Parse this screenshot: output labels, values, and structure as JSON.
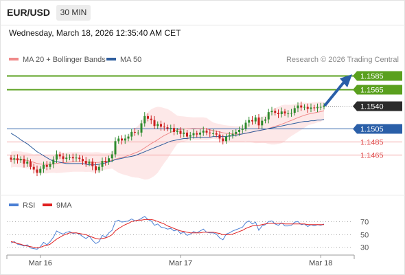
{
  "header": {
    "symbol": "EUR/USD",
    "timeframe": "30 MIN",
    "datetime": "Wednesday, March 18, 2026 12:35:40 AM CET"
  },
  "legend": {
    "ma20": "MA 20 + Bollinger Bands",
    "ma50": "MA 50",
    "ma20_color": "#f08a8a",
    "ma50_color": "#2f5e9e",
    "credit": "Research © 2026 Trading Central"
  },
  "rsi_legend": {
    "rsi": "RSI",
    "ma9": "9MA",
    "rsi_color": "#4a7fd4",
    "ma9_color": "#e02020"
  },
  "colors": {
    "green": "#5aa01e",
    "blue": "#2a5fa8",
    "red_level": "#e05050",
    "up_candle": "#2e8b2e",
    "down_candle": "#cc2020",
    "band_fill": "#fde2e2"
  },
  "chart_data": [
    {
      "type": "candlestick",
      "x_ticks": [
        "Mar 16",
        "Mar 17",
        "Mar 18"
      ],
      "levels": [
        {
          "label": "1.1585",
          "value": 1.1585,
          "style": "green-solid",
          "tag": "green"
        },
        {
          "label": "1.1565",
          "value": 1.1565,
          "style": "green-solid",
          "tag": "green"
        },
        {
          "label": "1.1540",
          "value": 1.154,
          "style": "dotted",
          "tag": "dark"
        },
        {
          "label": "1.1505",
          "value": 1.1505,
          "style": "blue-solid",
          "tag": "blue"
        },
        {
          "label": "1.1485",
          "value": 1.1485,
          "style": "red-solid",
          "tag": "red-text"
        },
        {
          "label": "1.1465",
          "value": 1.1465,
          "style": "red-solid",
          "tag": "red-text"
        }
      ],
      "ylim": [
        1.1405,
        1.16
      ],
      "closes": [
        1.1458,
        1.146,
        1.1457,
        1.1459,
        1.1452,
        1.1455,
        1.1447,
        1.1443,
        1.1438,
        1.1444,
        1.145,
        1.1447,
        1.1451,
        1.1458,
        1.1466,
        1.1463,
        1.1459,
        1.1461,
        1.1462,
        1.146,
        1.1461,
        1.1459,
        1.1456,
        1.1452,
        1.1455,
        1.1448,
        1.1442,
        1.1447,
        1.1456,
        1.1454,
        1.146,
        1.1466,
        1.1486,
        1.149,
        1.1487,
        1.149,
        1.1493,
        1.15,
        1.1499,
        1.1499,
        1.1513,
        1.1524,
        1.152,
        1.1518,
        1.1509,
        1.1512,
        1.1508,
        1.1507,
        1.1505,
        1.1506,
        1.15,
        1.1502,
        1.1497,
        1.1499,
        1.1493,
        1.1495,
        1.1498,
        1.1496,
        1.1499,
        1.1502,
        1.1499,
        1.1498,
        1.1498,
        1.1496,
        1.149,
        1.1486,
        1.1493,
        1.1495,
        1.1497,
        1.15,
        1.1503,
        1.1505,
        1.1514,
        1.1518,
        1.1516,
        1.1522,
        1.151,
        1.1517,
        1.1519,
        1.153,
        1.1532,
        1.1529,
        1.1527,
        1.1531,
        1.1528,
        1.1528,
        1.1529,
        1.1536,
        1.154,
        1.1537,
        1.1538,
        1.1535,
        1.1537,
        1.1536,
        1.1538,
        1.1538,
        1.154
      ],
      "ma50": [
        1.1498,
        1.1495,
        1.1492,
        1.1488,
        1.1485,
        1.1482,
        1.1478,
        1.1474,
        1.147,
        1.1467,
        1.1464,
        1.1461,
        1.1458,
        1.1456,
        1.1455,
        1.1454,
        1.1453,
        1.1452,
        1.1452,
        1.1452,
        1.1452,
        1.1452,
        1.1452,
        1.1451,
        1.145,
        1.145,
        1.145,
        1.1451,
        1.1452,
        1.1453,
        1.1455,
        1.1456,
        1.1458,
        1.1459,
        1.146,
        1.1461,
        1.1462,
        1.1463,
        1.1464,
        1.1466,
        1.1468,
        1.147,
        1.1472,
        1.1474,
        1.1476,
        1.1478,
        1.148,
        1.1482,
        1.1484,
        1.1486,
        1.1487,
        1.1488,
        1.1489,
        1.149,
        1.149,
        1.1491,
        1.1491,
        1.1491,
        1.1492,
        1.1492,
        1.1492,
        1.1492,
        1.1493,
        1.1493,
        1.1493,
        1.1493,
        1.1493,
        1.1494,
        1.1494,
        1.1495,
        1.1496,
        1.1497,
        1.1498,
        1.1499,
        1.15,
        1.1501,
        1.1502,
        1.1503,
        1.1504,
        1.1505,
        1.1506,
        1.1507,
        1.1508,
        1.1509,
        1.151,
        1.1511,
        1.1512,
        1.1513,
        1.1514,
        1.1515,
        1.1516,
        1.1516,
        1.1517,
        1.1517,
        1.1518,
        1.1518,
        1.1519
      ]
    },
    {
      "type": "line",
      "name": "RSI",
      "y_ticks": [
        70,
        50,
        30
      ],
      "ylim": [
        20,
        80
      ],
      "rsi": [
        36,
        38,
        34,
        33,
        31,
        33,
        28,
        27,
        26,
        30,
        37,
        33,
        38,
        45,
        55,
        52,
        50,
        53,
        54,
        51,
        52,
        50,
        46,
        43,
        47,
        40,
        35,
        38,
        48,
        45,
        52,
        56,
        70,
        72,
        69,
        70,
        71,
        74,
        71,
        72,
        75,
        78,
        73,
        71,
        64,
        66,
        61,
        60,
        58,
        59,
        55,
        57,
        51,
        53,
        48,
        50,
        54,
        52,
        55,
        58,
        53,
        52,
        52,
        50,
        44,
        41,
        50,
        52,
        55,
        57,
        59,
        61,
        68,
        71,
        66,
        69,
        56,
        63,
        65,
        70,
        71,
        66,
        64,
        68,
        63,
        63,
        64,
        69,
        70,
        65,
        66,
        62,
        65,
        63,
        65,
        64,
        66
      ],
      "ma9": [
        38,
        37,
        35,
        34,
        32,
        31,
        30,
        29,
        28,
        29,
        31,
        32,
        34,
        38,
        42,
        45,
        48,
        50,
        52,
        52,
        52,
        51,
        50,
        49,
        47,
        45,
        43,
        42,
        43,
        44,
        46,
        49,
        55,
        59,
        62,
        65,
        67,
        70,
        71,
        72,
        72,
        73,
        73,
        73,
        72,
        70,
        68,
        66,
        63,
        61,
        59,
        57,
        55,
        54,
        53,
        52,
        52,
        52,
        52,
        53,
        53,
        53,
        53,
        52,
        51,
        49,
        49,
        49,
        50,
        52,
        54,
        56,
        59,
        61,
        63,
        64,
        64,
        65,
        66,
        67,
        67,
        67,
        67,
        67,
        66,
        66,
        66,
        66,
        66,
        66,
        66,
        65,
        65,
        65,
        65,
        65,
        65
      ]
    }
  ]
}
